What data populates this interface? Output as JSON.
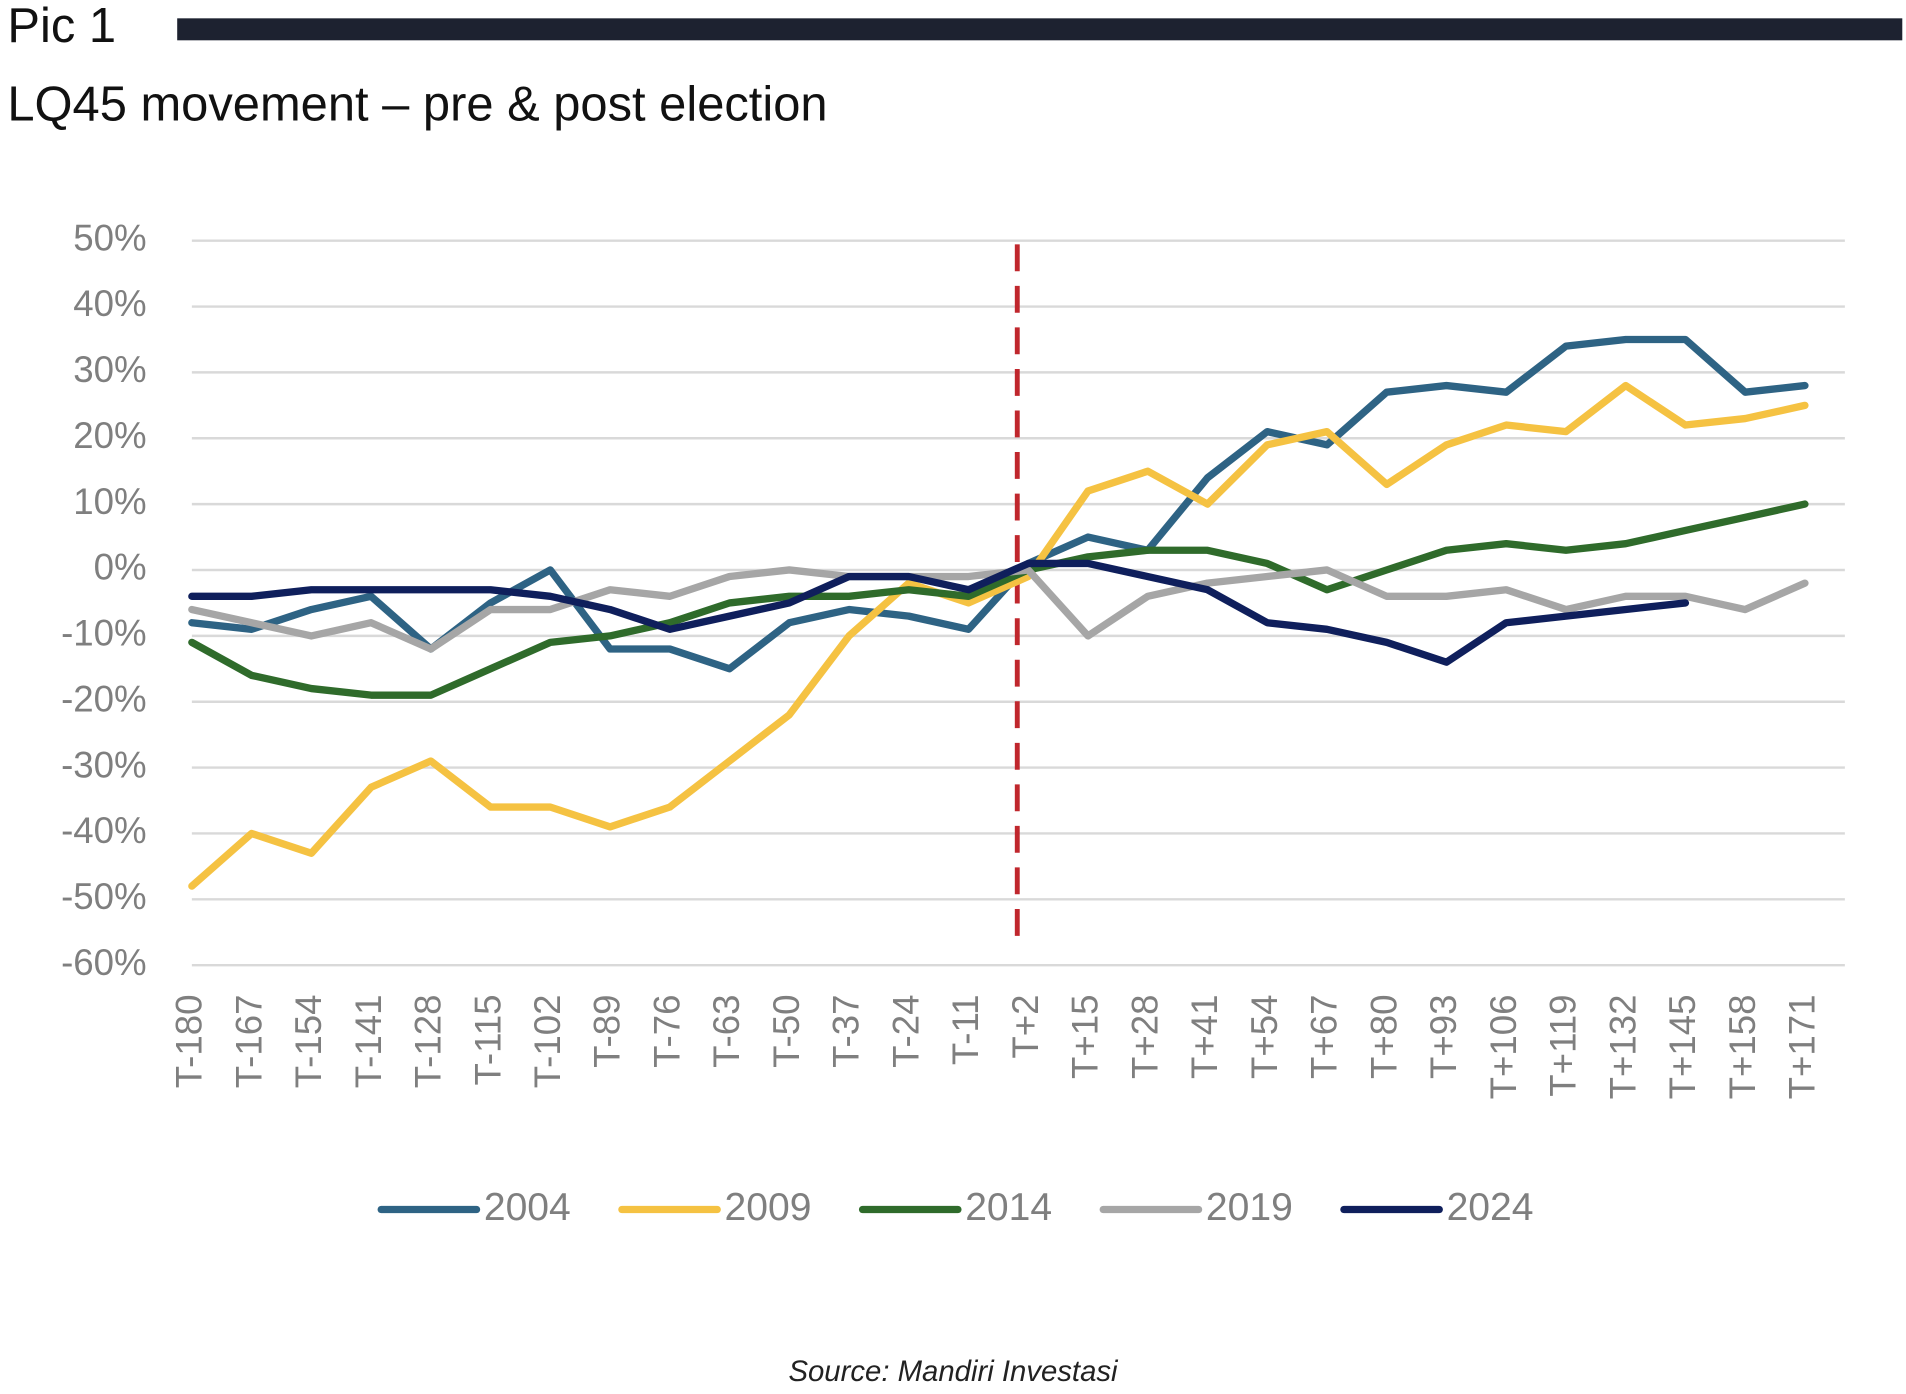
{
  "chart_data": {
    "type": "line",
    "pic_label": "Pic 1",
    "title": "LQ45 movement – pre & post election",
    "source": "Source: Mandiri Investasi",
    "categories": [
      "T-180",
      "T-167",
      "T-154",
      "T-141",
      "T-128",
      "T-115",
      "T-102",
      "T-89",
      "T-76",
      "T-63",
      "T-50",
      "T-37",
      "T-24",
      "T-11",
      "T+2",
      "T+15",
      "T+28",
      "T+41",
      "T+54",
      "T+67",
      "T+80",
      "T+93",
      "T+106",
      "T+119",
      "T+132",
      "T+145",
      "T+158",
      "T+171"
    ],
    "series": [
      {
        "name": "2004",
        "color": "#2e6384",
        "values": [
          -8,
          -9,
          -6,
          -4,
          -12,
          -5,
          0,
          -12,
          -12,
          -15,
          -8,
          -6,
          -7,
          -9,
          1,
          5,
          3,
          14,
          21,
          19,
          27,
          28,
          27,
          34,
          35,
          35,
          27,
          28
        ]
      },
      {
        "name": "2009",
        "color": "#f5c242",
        "values": [
          -48,
          -40,
          -43,
          -33,
          -29,
          -36,
          -36,
          -39,
          -36,
          -29,
          -22,
          -10,
          -2,
          -5,
          -1,
          12,
          15,
          10,
          19,
          21,
          13,
          19,
          22,
          21,
          28,
          22,
          23,
          25
        ]
      },
      {
        "name": "2014",
        "color": "#2f6b2b",
        "values": [
          -11,
          -16,
          -18,
          -19,
          -19,
          -15,
          -11,
          -10,
          -8,
          -5,
          -4,
          -4,
          -3,
          -4,
          0,
          2,
          3,
          3,
          1,
          -3,
          0,
          3,
          4,
          3,
          4,
          6,
          8,
          10
        ]
      },
      {
        "name": "2019",
        "color": "#a6a6a6",
        "values": [
          -6,
          -8,
          -10,
          -8,
          -12,
          -6,
          -6,
          -3,
          -4,
          -1,
          0,
          -1,
          -1,
          -1,
          0,
          -10,
          -4,
          -2,
          -1,
          0,
          -4,
          -4,
          -3,
          -6,
          -4,
          -4,
          -6,
          -2
        ]
      },
      {
        "name": "2024",
        "color": "#0f1f5c",
        "values": [
          -4,
          -4,
          -3,
          -3,
          -3,
          -3,
          -4,
          -6,
          -9,
          -7,
          -5,
          -1,
          -1,
          -3,
          1,
          1,
          -1,
          -3,
          -8,
          -9,
          -11,
          -14,
          -8,
          -7,
          -6,
          -5,
          null,
          null
        ]
      }
    ],
    "ylim": [
      -60,
      50
    ],
    "yticks": [
      {
        "value": -60,
        "label": "-60%"
      },
      {
        "value": -50,
        "label": "-50%"
      },
      {
        "value": -40,
        "label": "-40%"
      },
      {
        "value": -30,
        "label": "-30%"
      },
      {
        "value": -20,
        "label": "-20%"
      },
      {
        "value": -10,
        "label": "-10%"
      },
      {
        "value": 0,
        "label": "0%"
      },
      {
        "value": 10,
        "label": "10%"
      },
      {
        "value": 20,
        "label": "20%"
      },
      {
        "value": 30,
        "label": "30%"
      },
      {
        "value": 40,
        "label": "40%"
      },
      {
        "value": 50,
        "label": "50%"
      }
    ],
    "grid": true,
    "legend": "bottom"
  }
}
